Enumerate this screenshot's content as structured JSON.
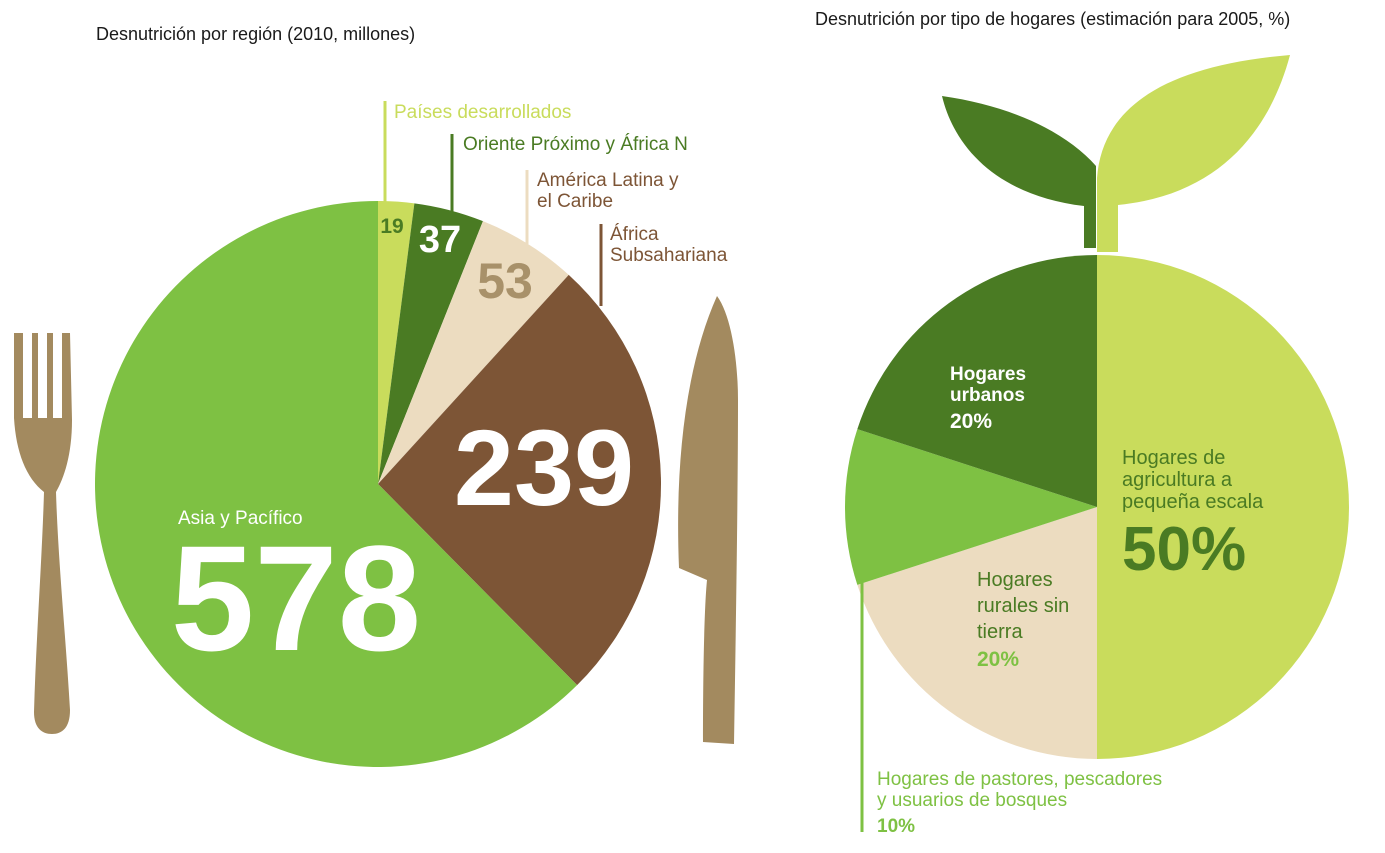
{
  "charts": {
    "left": {
      "title": "Desnutrición por región (2010, millones)"
    },
    "right": {
      "title": "Desnutrición por tipo de hogares (estimación para 2005, %)"
    }
  },
  "colors": {
    "light_green": "#c9dc5c",
    "dark_green": "#4a7b23",
    "beige": "#ecdcc0",
    "brown": "#7d5536",
    "green": "#7ec143",
    "utensil": "#a38a5f",
    "tan_text": "#a8916a"
  },
  "icons": [
    "fork-icon",
    "knife-icon",
    "sprout-leaf-icon"
  ],
  "chart_data": [
    {
      "type": "pie",
      "title": "Desnutrición por región (2010, millones)",
      "categories": [
        "Países desarrollados",
        "Oriente Próximo y África N",
        "América Latina y el Caribe",
        "África Subsahariana",
        "Asia y Pacífico"
      ],
      "values": [
        19,
        37,
        53,
        239,
        578
      ],
      "labels": [
        "19",
        "37",
        "53",
        "239",
        "578"
      ],
      "name_lines": [
        [
          "Países desarrollados"
        ],
        [
          "Oriente Próximo y África N"
        ],
        [
          "América Latina y",
          "el Caribe"
        ],
        [
          "África",
          "Subsahariana"
        ],
        [
          "Asia y Pacífico"
        ]
      ],
      "colors": [
        "#c9dc5c",
        "#4a7b23",
        "#ecdcc0",
        "#7d5536",
        "#7ec143"
      ]
    },
    {
      "type": "pie",
      "title": "Desnutrición por tipo de hogares (estimación para 2005, %)",
      "categories": [
        "Hogares de agricultura a pequeña escala",
        "Hogares rurales sin tierra",
        "Hogares de pastores, pescadores y usuarios de bosques",
        "Hogares urbanos"
      ],
      "values": [
        50,
        20,
        10,
        20
      ],
      "labels": [
        "50%",
        "20%",
        "10%",
        "20%"
      ],
      "name_lines": [
        [
          "Hogares de",
          "agricultura a",
          "pequeña escala"
        ],
        [
          "Hogares",
          "rurales sin",
          "tierra"
        ],
        [
          "Hogares de pastores, pescadores",
          "y usuarios de bosques"
        ],
        [
          "Hogares",
          "urbanos"
        ]
      ],
      "colors": [
        "#c9dc5c",
        "#ecdcc0",
        "#7ec143",
        "#4a7b23"
      ]
    }
  ]
}
